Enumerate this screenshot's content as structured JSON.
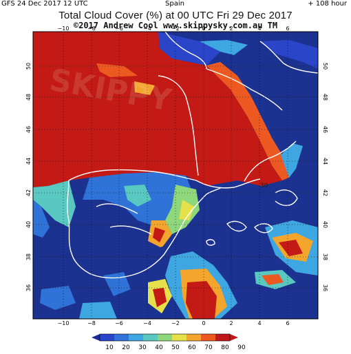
{
  "header": {
    "run_info": "GFS 24 Dec 2017 12 UTC",
    "region": "Spain",
    "forecast_hour": "+ 108 hour",
    "title": "Total Cloud Cover (%) at 00 UTC Fri 29 Dec 2017",
    "credit": "©2017 Andrew Cool  www.skippysky.com.au  TM"
  },
  "map": {
    "lon_ticks": [
      "−10",
      "−8",
      "−6",
      "−4",
      "−2",
      "0",
      "2",
      "4",
      "6"
    ],
    "lat_ticks": [
      "36",
      "38",
      "40",
      "42",
      "44",
      "46",
      "48",
      "50"
    ],
    "contour_label": "30",
    "watermark": "SKIPPY"
  },
  "colorbar": {
    "labels": [
      "10",
      "20",
      "30",
      "40",
      "50",
      "60",
      "70",
      "80",
      "90"
    ],
    "colors": [
      "#1c2a9e",
      "#2a45c8",
      "#2f72d8",
      "#3ea6e0",
      "#58c8c0",
      "#8ed77a",
      "#e6e04a",
      "#f4a62c",
      "#ec5a22",
      "#c0181a"
    ]
  },
  "palette": {
    "background": "#ffffff",
    "clear_sky": "#1c3290",
    "overcast": "#c41a16",
    "coastline": "#ffffff",
    "grid": "#000000"
  }
}
